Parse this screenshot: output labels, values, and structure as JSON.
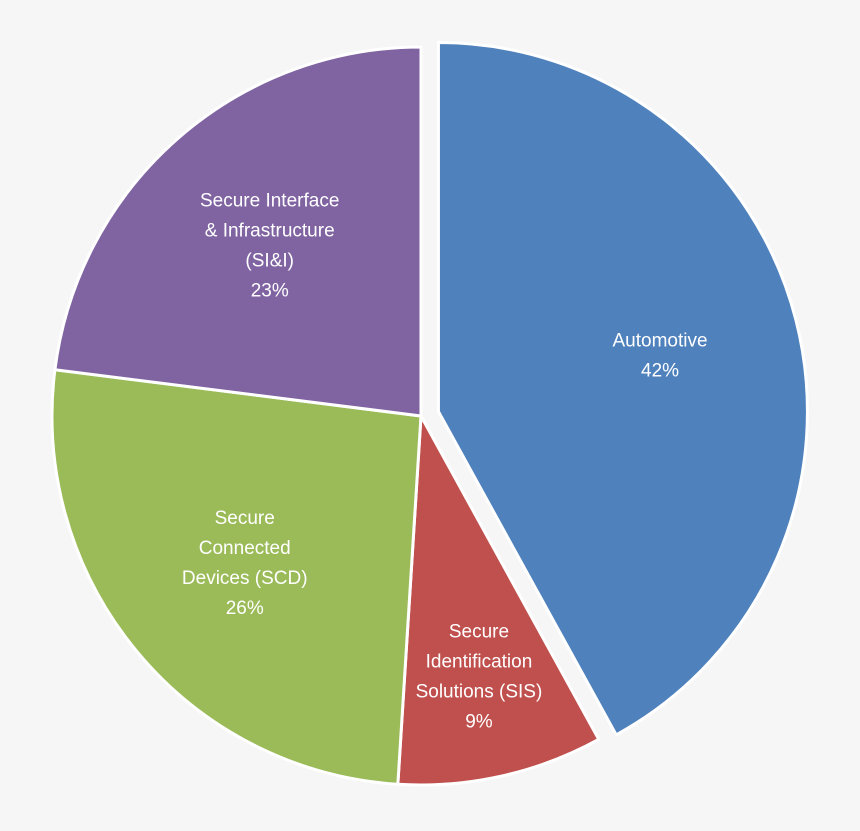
{
  "chart_data": {
    "type": "pie",
    "title": "",
    "start": "top",
    "direction": "clockwise",
    "slices": [
      {
        "label": [
          "Automotive",
          "42%"
        ],
        "value": 42,
        "color": "#4f81bd",
        "exploded": true
      },
      {
        "label": [
          "Secure",
          "Identification",
          "Solutions (SIS)",
          "9%"
        ],
        "value": 9,
        "color": "#c0504d",
        "exploded": false
      },
      {
        "label": [
          "Secure",
          "Connected",
          "Devices (SCD)",
          "26%"
        ],
        "value": 26,
        "color": "#9bbb59",
        "exploded": false
      },
      {
        "label": [
          "Secure Interface",
          "& Infrastructure",
          "(SI&I)",
          "23%"
        ],
        "value": 23,
        "color": "#8064a2",
        "exploded": false
      }
    ],
    "slice_border_color": "#ffffff",
    "label_color": "#ffffff",
    "background": "#f6f6f6"
  }
}
